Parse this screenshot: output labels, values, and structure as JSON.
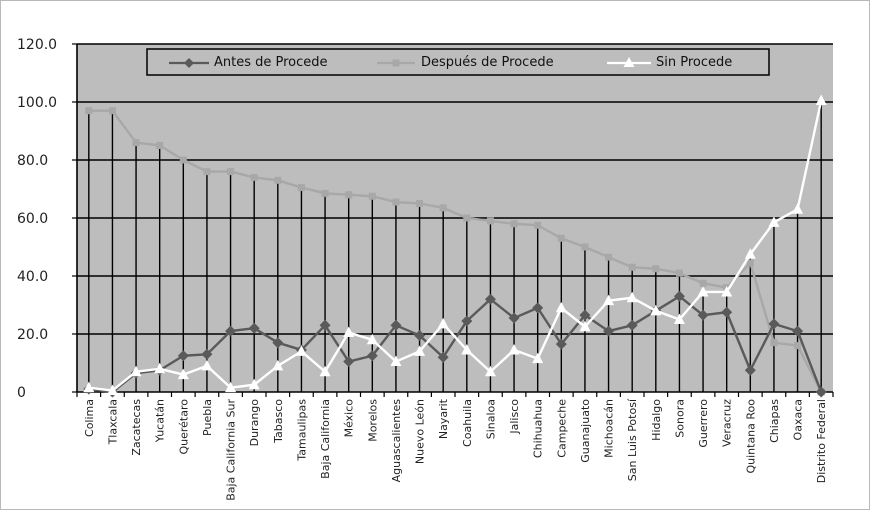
{
  "chart_data": {
    "type": "line",
    "title": "",
    "xlabel": "",
    "ylabel": "",
    "ylim": [
      0,
      120
    ],
    "y_ticks": [
      "120.0",
      "100.0",
      "80.0",
      "60.0",
      "40.0",
      "20.0",
      "0"
    ],
    "y_tick_values": [
      120,
      100,
      80,
      60,
      40,
      20,
      0
    ],
    "grid": true,
    "legend": "top",
    "categories": [
      "Colima",
      "Tlaxcala",
      "Zacatecas",
      "Yucatán",
      "Querétaro",
      "Puebla",
      "Baja California Sur",
      "Durango",
      "Tabasco",
      "Tamaulipas",
      "Baja California",
      "México",
      "Morelos",
      "Aguascalientes",
      "Nuevo León",
      "Nayarit",
      "Coahuila",
      "Sinaloa",
      "Jalisco",
      "Chihuahua",
      "Campeche",
      "Guanajuato",
      "Michoacán",
      "San Luis Potosí",
      "Hidalgo",
      "Sonora",
      "Guerrero",
      "Veracruz",
      "Quintana Roo",
      "Chiapas",
      "Oaxaca",
      "Distrito Federal"
    ],
    "series": [
      {
        "name": "Antes de Procede",
        "color": "#5a5a5a",
        "marker": "diamond",
        "values": [
          1,
          0,
          6.5,
          7.5,
          12.5,
          13,
          21,
          22,
          17,
          14.5,
          23,
          10.5,
          12.5,
          23,
          19.5,
          12,
          24.5,
          32,
          25.5,
          29,
          16.5,
          26.5,
          21,
          23,
          28,
          33,
          26.5,
          27.5,
          7.5,
          23.5,
          21,
          0
        ]
      },
      {
        "name": "Después de Procede",
        "color": "#a8a8a8",
        "marker": "square",
        "values": [
          97,
          97,
          86,
          85,
          80,
          76,
          76,
          74,
          73,
          70.5,
          68.5,
          68,
          67.5,
          65.5,
          65,
          63.5,
          60,
          59,
          58,
          57.5,
          53,
          50,
          46.5,
          43,
          42.5,
          41,
          37.5,
          36,
          44.5,
          17,
          16,
          0
        ]
      },
      {
        "name": "Sin Procede",
        "color": "#ffffff",
        "marker": "triangle",
        "values": [
          1.5,
          0.5,
          7,
          8,
          6,
          9,
          1.5,
          2.5,
          9,
          14,
          7,
          20.5,
          18,
          10.5,
          14,
          23.5,
          14.5,
          7,
          14.5,
          11.5,
          29,
          22.5,
          31.5,
          32.5,
          28,
          25,
          34.5,
          34.5,
          47.5,
          58.5,
          63,
          100.5
        ]
      }
    ]
  }
}
